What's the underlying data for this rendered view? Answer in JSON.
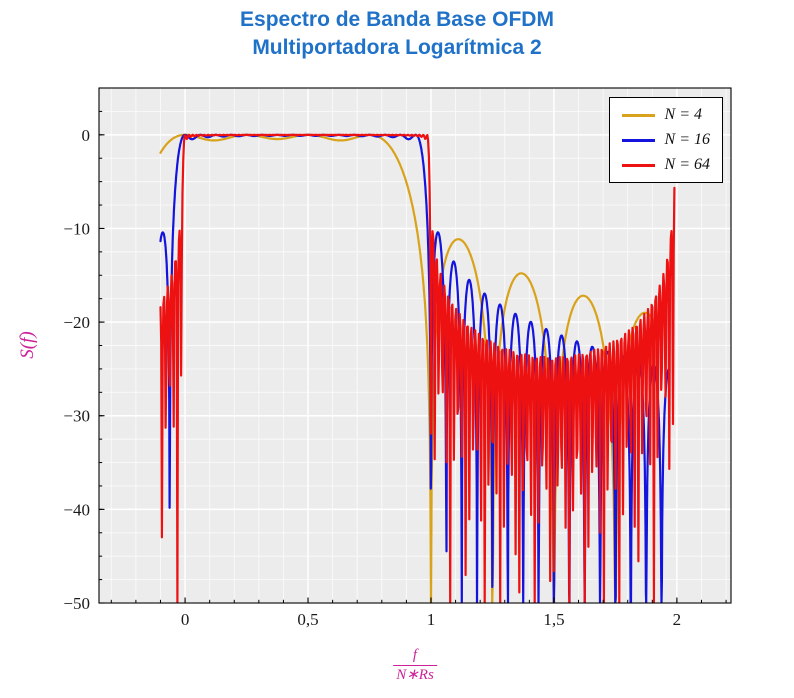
{
  "chart_data": {
    "type": "line",
    "title_line1": "Espectro de Banda Base OFDM",
    "title_line2": "Multiportadora Logarítmica 2",
    "ylabel": "S(f)",
    "xlabel_numerator": "f",
    "xlabel_denominator": "N∗Rs",
    "xlim": [
      -0.35,
      2.22
    ],
    "ylim": [
      -50,
      5
    ],
    "x_ticks": [
      {
        "v": 0,
        "label": "0"
      },
      {
        "v": 0.5,
        "label": "0,5"
      },
      {
        "v": 1,
        "label": "1"
      },
      {
        "v": 1.5,
        "label": "1,5"
      },
      {
        "v": 2,
        "label": "2"
      }
    ],
    "y_ticks": [
      {
        "v": 0,
        "label": "0"
      },
      {
        "v": -10,
        "label": "−10"
      },
      {
        "v": -20,
        "label": "−20"
      },
      {
        "v": -30,
        "label": "−30"
      },
      {
        "v": -40,
        "label": "−40"
      },
      {
        "v": -50,
        "label": "−50"
      }
    ],
    "x_minor_step": 0.1,
    "y_minor_step": 2.5,
    "grid": true,
    "legend_position": "top-right",
    "series": [
      {
        "name": "N = 4",
        "N": 4,
        "color": "#d9a21b",
        "samples": 800,
        "domain": [
          -0.1,
          1.93
        ],
        "alias_replica": false
      },
      {
        "name": "N = 16",
        "N": 16,
        "color": "#1414dd",
        "samples": 1400,
        "domain": [
          -0.1,
          1.97
        ],
        "alias_replica": false
      },
      {
        "name": "N = 64",
        "N": 64,
        "color": "#ee1111",
        "samples": 700,
        "domain": [
          -0.1,
          1.99
        ],
        "alias_replica": true
      }
    ],
    "model": "S(x) = 10·log10( Σ_{k=0}^{N−1} sinc²(N·x − k) ), x = f/(N∗Rs); banda plana 0 dB en 0 ≤ x ≤ 1, lóbulos laterales decrecientes de −11 dB a −25 dB en 1 < x < 2, réplica espectral cerca de x ≈ 2 para N = 64, recortado en −50 dB",
    "colors": {
      "title": "#1f72c8",
      "axis_label": "#cc2299",
      "plot_bg": "#ececec",
      "grid_minor": "#fafafa",
      "grid_major": "#ffffff",
      "axis": "#000000"
    }
  }
}
